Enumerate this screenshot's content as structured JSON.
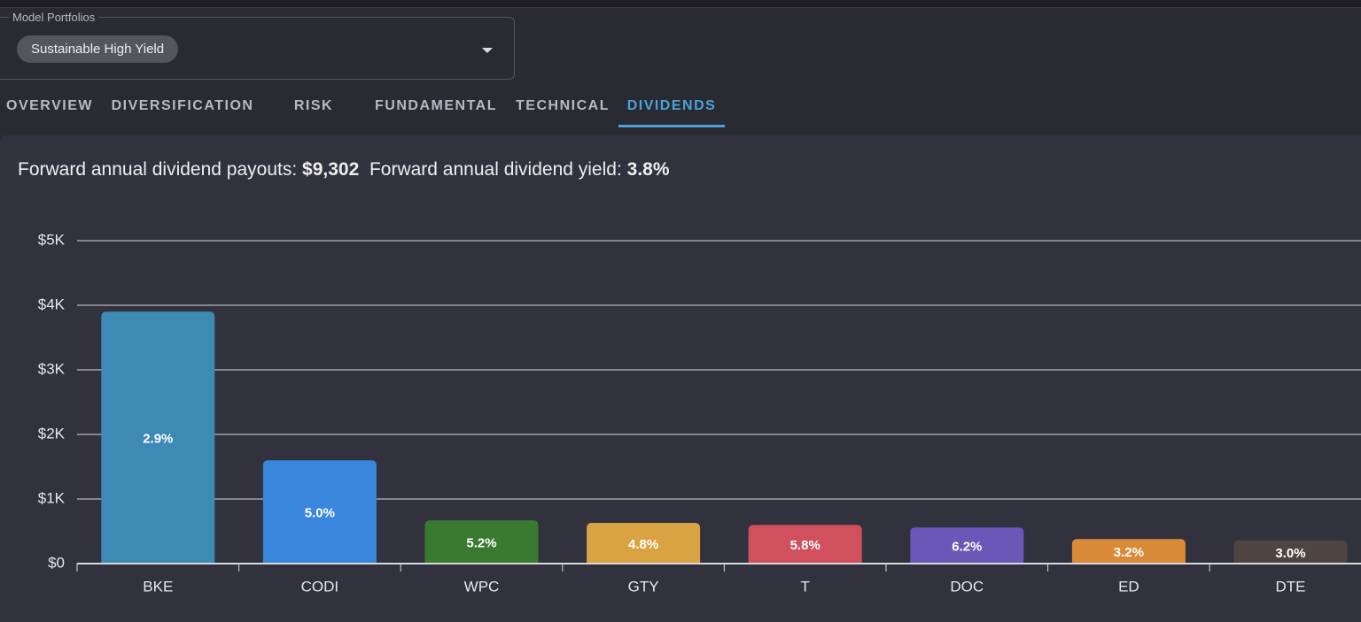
{
  "dropdown": {
    "label": "Model Portfolios",
    "value": "Sustainable High Yield"
  },
  "tabs": [
    {
      "label": "OVERVIEW",
      "active": false
    },
    {
      "label": "DIVERSIFICATION",
      "active": false
    },
    {
      "label": "RISK",
      "active": false
    },
    {
      "label": "FUNDAMENTAL",
      "active": false
    },
    {
      "label": "TECHNICAL",
      "active": false
    },
    {
      "label": "DIVIDENDS",
      "active": true
    }
  ],
  "summary": {
    "payouts_label": "Forward annual dividend payouts:",
    "payouts_value": "$9,302",
    "yield_label": "Forward annual dividend yield:",
    "yield_value": "3.8%"
  },
  "chart_data": {
    "type": "bar",
    "categories": [
      "BKE",
      "CODI",
      "WPC",
      "GTY",
      "T",
      "DOC",
      "ED",
      "DTE"
    ],
    "values": [
      3900,
      1600,
      670,
      630,
      600,
      560,
      380,
      360
    ],
    "yield_labels": [
      "2.9%",
      "5.0%",
      "5.2%",
      "4.8%",
      "5.8%",
      "6.2%",
      "3.2%",
      "3.0%"
    ],
    "colors": [
      "#3d8bb5",
      "#3a86dd",
      "#3a7a30",
      "#d9a343",
      "#d0505e",
      "#6a58b8",
      "#d98b3a",
      "#4e4440"
    ],
    "ylim": [
      0,
      5000
    ],
    "yticks": [
      {
        "value": 0,
        "label": "$0"
      },
      {
        "value": 1000,
        "label": "$1K"
      },
      {
        "value": 2000,
        "label": "$2K"
      },
      {
        "value": 3000,
        "label": "$3K"
      },
      {
        "value": 4000,
        "label": "$4K"
      },
      {
        "value": 5000,
        "label": "$5K"
      }
    ],
    "grid": true
  }
}
